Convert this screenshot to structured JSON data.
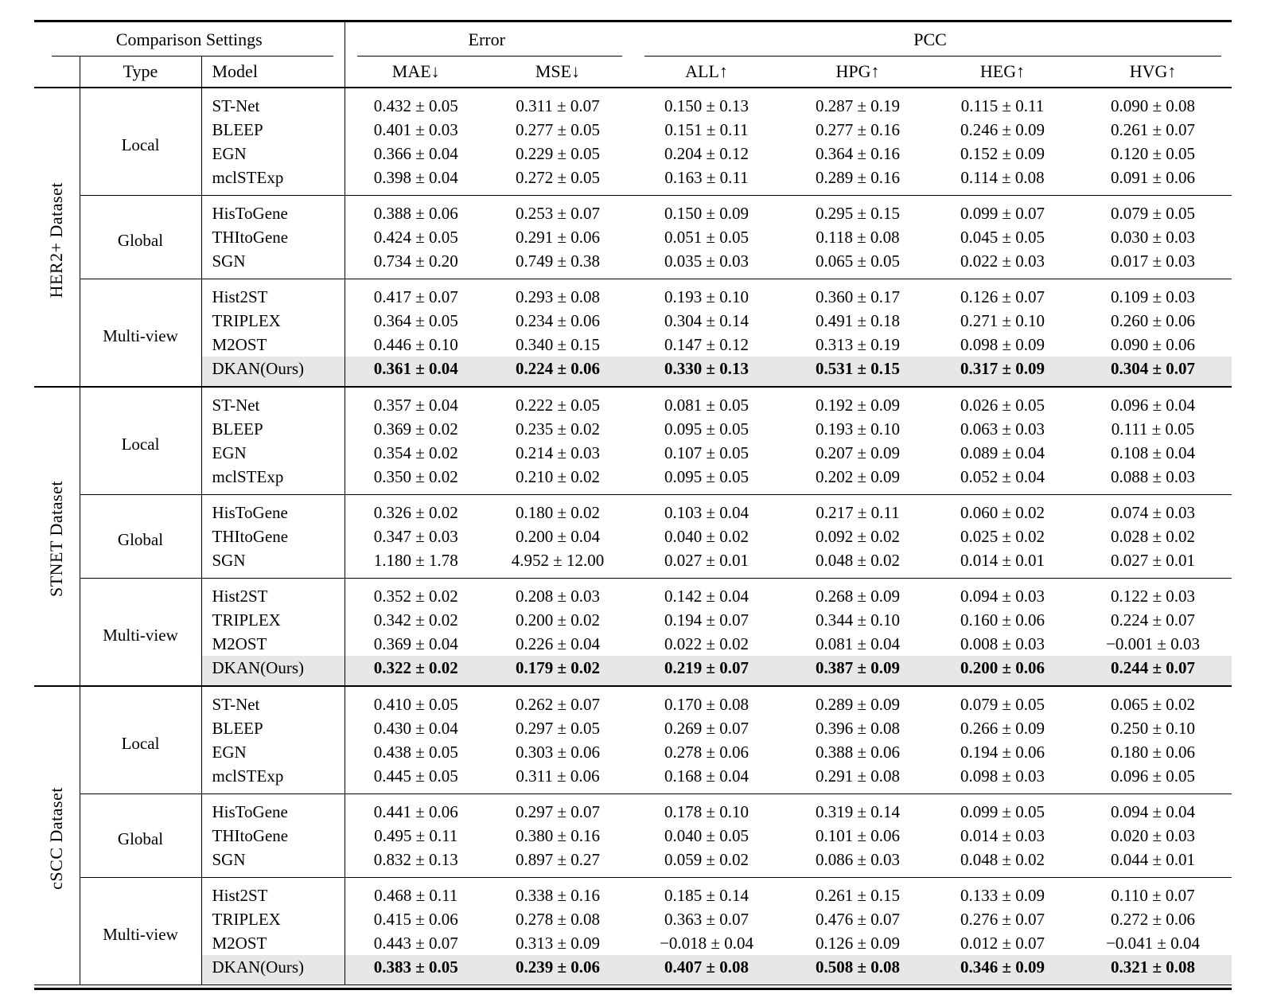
{
  "page": {
    "background": "#ffffff"
  },
  "table": {
    "header": {
      "comparison_settings": "Comparison Settings",
      "error": "Error",
      "pcc": "PCC",
      "type": "Type",
      "model": "Model",
      "metrics": [
        "MAE↓",
        "MSE↓",
        "ALL↑",
        "HPG↑",
        "HEG↑",
        "HVG↑"
      ]
    },
    "text_color": "#000000",
    "highlight_color": "#e7e7e7",
    "sections": [
      {
        "dataset": "HER2+ Dataset",
        "groups": [
          {
            "type": "Local",
            "rows": [
              {
                "model": "ST-Net",
                "highlight": false,
                "values": [
                  "0.432 ± 0.05",
                  "0.311 ± 0.07",
                  "0.150 ± 0.13",
                  "0.287 ± 0.19",
                  "0.115 ± 0.11",
                  "0.090 ± 0.08"
                ]
              },
              {
                "model": "BLEEP",
                "highlight": false,
                "values": [
                  "0.401 ± 0.03",
                  "0.277 ± 0.05",
                  "0.151 ± 0.11",
                  "0.277 ± 0.16",
                  "0.246 ± 0.09",
                  "0.261 ± 0.07"
                ]
              },
              {
                "model": "EGN",
                "highlight": false,
                "values": [
                  "0.366 ± 0.04",
                  "0.229 ± 0.05",
                  "0.204 ± 0.12",
                  "0.364 ± 0.16",
                  "0.152 ± 0.09",
                  "0.120 ± 0.05"
                ]
              },
              {
                "model": "mclSTExp",
                "highlight": false,
                "values": [
                  "0.398 ± 0.04",
                  "0.272 ± 0.05",
                  "0.163 ± 0.11",
                  "0.289 ± 0.16",
                  "0.114 ± 0.08",
                  "0.091 ± 0.06"
                ]
              }
            ]
          },
          {
            "type": "Global",
            "rows": [
              {
                "model": "HisToGene",
                "highlight": false,
                "values": [
                  "0.388 ± 0.06",
                  "0.253 ± 0.07",
                  "0.150 ± 0.09",
                  "0.295 ± 0.15",
                  "0.099 ± 0.07",
                  "0.079 ± 0.05"
                ]
              },
              {
                "model": "THItoGene",
                "highlight": false,
                "values": [
                  "0.424 ± 0.05",
                  "0.291 ± 0.06",
                  "0.051 ± 0.05",
                  "0.118 ± 0.08",
                  "0.045 ± 0.05",
                  "0.030 ± 0.03"
                ]
              },
              {
                "model": "SGN",
                "highlight": false,
                "values": [
                  "0.734 ± 0.20",
                  "0.749 ± 0.38",
                  "0.035 ± 0.03",
                  "0.065 ± 0.05",
                  "0.022 ± 0.03",
                  "0.017 ± 0.03"
                ]
              }
            ]
          },
          {
            "type": "Multi-view",
            "rows": [
              {
                "model": "Hist2ST",
                "highlight": false,
                "values": [
                  "0.417 ± 0.07",
                  "0.293 ± 0.08",
                  "0.193 ± 0.10",
                  "0.360 ± 0.17",
                  "0.126 ± 0.07",
                  "0.109 ± 0.03"
                ]
              },
              {
                "model": "TRIPLEX",
                "highlight": false,
                "values": [
                  "0.364 ± 0.05",
                  "0.234 ± 0.06",
                  "0.304 ± 0.14",
                  "0.491 ± 0.18",
                  "0.271 ± 0.10",
                  "0.260 ± 0.06"
                ]
              },
              {
                "model": "M2OST",
                "highlight": false,
                "values": [
                  "0.446 ± 0.10",
                  "0.340 ± 0.15",
                  "0.147 ± 0.12",
                  "0.313 ± 0.19",
                  "0.098 ± 0.09",
                  "0.090 ± 0.06"
                ]
              },
              {
                "model": "DKAN(Ours)",
                "highlight": true,
                "values": [
                  "0.361 ± 0.04",
                  "0.224 ± 0.06",
                  "0.330 ± 0.13",
                  "0.531 ± 0.15",
                  "0.317 ± 0.09",
                  "0.304 ± 0.07"
                ]
              }
            ]
          }
        ]
      },
      {
        "dataset": "STNET Dataset",
        "groups": [
          {
            "type": "Local",
            "rows": [
              {
                "model": "ST-Net",
                "highlight": false,
                "values": [
                  "0.357 ± 0.04",
                  "0.222 ± 0.05",
                  "0.081 ± 0.05",
                  "0.192 ± 0.09",
                  "0.026 ± 0.05",
                  "0.096 ± 0.04"
                ]
              },
              {
                "model": "BLEEP",
                "highlight": false,
                "values": [
                  "0.369 ± 0.02",
                  "0.235 ± 0.02",
                  "0.095 ± 0.05",
                  "0.193 ± 0.10",
                  "0.063 ± 0.03",
                  "0.111 ± 0.05"
                ]
              },
              {
                "model": "EGN",
                "highlight": false,
                "values": [
                  "0.354 ± 0.02",
                  "0.214 ± 0.03",
                  "0.107 ± 0.05",
                  "0.207 ± 0.09",
                  "0.089 ± 0.04",
                  "0.108 ± 0.04"
                ]
              },
              {
                "model": "mclSTExp",
                "highlight": false,
                "values": [
                  "0.350 ± 0.02",
                  "0.210 ± 0.02",
                  "0.095 ± 0.05",
                  "0.202 ± 0.09",
                  "0.052 ± 0.04",
                  "0.088 ± 0.03"
                ]
              }
            ]
          },
          {
            "type": "Global",
            "rows": [
              {
                "model": "HisToGene",
                "highlight": false,
                "values": [
                  "0.326 ± 0.02",
                  "0.180 ± 0.02",
                  "0.103 ± 0.04",
                  "0.217 ± 0.11",
                  "0.060 ± 0.02",
                  "0.074 ± 0.03"
                ]
              },
              {
                "model": "THItoGene",
                "highlight": false,
                "values": [
                  "0.347 ± 0.03",
                  "0.200 ± 0.04",
                  "0.040 ± 0.02",
                  "0.092 ± 0.02",
                  "0.025 ± 0.02",
                  "0.028 ± 0.02"
                ]
              },
              {
                "model": "SGN",
                "highlight": false,
                "values": [
                  "1.180 ± 1.78",
                  "4.952 ± 12.00",
                  "0.027 ± 0.01",
                  "0.048 ± 0.02",
                  "0.014 ± 0.01",
                  "0.027 ± 0.01"
                ]
              }
            ]
          },
          {
            "type": "Multi-view",
            "rows": [
              {
                "model": "Hist2ST",
                "highlight": false,
                "values": [
                  "0.352 ± 0.02",
                  "0.208 ± 0.03",
                  "0.142 ± 0.04",
                  "0.268 ± 0.09",
                  "0.094 ± 0.03",
                  "0.122 ± 0.03"
                ]
              },
              {
                "model": "TRIPLEX",
                "highlight": false,
                "values": [
                  "0.342 ± 0.02",
                  "0.200 ± 0.02",
                  "0.194 ± 0.07",
                  "0.344 ± 0.10",
                  "0.160 ± 0.06",
                  "0.224 ± 0.07"
                ]
              },
              {
                "model": "M2OST",
                "highlight": false,
                "values": [
                  "0.369 ± 0.04",
                  "0.226 ± 0.04",
                  "0.022 ± 0.02",
                  "0.081 ± 0.04",
                  "0.008 ± 0.03",
                  "−0.001 ± 0.03"
                ]
              },
              {
                "model": "DKAN(Ours)",
                "highlight": true,
                "values": [
                  "0.322 ± 0.02",
                  "0.179 ± 0.02",
                  "0.219 ± 0.07",
                  "0.387 ± 0.09",
                  "0.200 ± 0.06",
                  "0.244 ± 0.07"
                ]
              }
            ]
          }
        ]
      },
      {
        "dataset": "cSCC Dataset",
        "groups": [
          {
            "type": "Local",
            "rows": [
              {
                "model": "ST-Net",
                "highlight": false,
                "values": [
                  "0.410 ± 0.05",
                  "0.262 ± 0.07",
                  "0.170 ± 0.08",
                  "0.289 ± 0.09",
                  "0.079 ± 0.05",
                  "0.065 ± 0.02"
                ]
              },
              {
                "model": "BLEEP",
                "highlight": false,
                "values": [
                  "0.430 ± 0.04",
                  "0.297 ± 0.05",
                  "0.269 ± 0.07",
                  "0.396 ± 0.08",
                  "0.266 ± 0.09",
                  "0.250 ± 0.10"
                ]
              },
              {
                "model": "EGN",
                "highlight": false,
                "values": [
                  "0.438 ± 0.05",
                  "0.303 ± 0.06",
                  "0.278 ± 0.06",
                  "0.388 ± 0.06",
                  "0.194 ± 0.06",
                  "0.180 ± 0.06"
                ]
              },
              {
                "model": "mclSTExp",
                "highlight": false,
                "values": [
                  "0.445 ± 0.05",
                  "0.311 ± 0.06",
                  "0.168 ± 0.04",
                  "0.291 ± 0.08",
                  "0.098 ± 0.03",
                  "0.096 ± 0.05"
                ]
              }
            ]
          },
          {
            "type": "Global",
            "rows": [
              {
                "model": "HisToGene",
                "highlight": false,
                "values": [
                  "0.441 ± 0.06",
                  "0.297 ± 0.07",
                  "0.178 ± 0.10",
                  "0.319 ± 0.14",
                  "0.099 ± 0.05",
                  "0.094 ± 0.04"
                ]
              },
              {
                "model": "THItoGene",
                "highlight": false,
                "values": [
                  "0.495 ± 0.11",
                  "0.380 ± 0.16",
                  "0.040 ± 0.05",
                  "0.101 ± 0.06",
                  "0.014 ± 0.03",
                  "0.020 ± 0.03"
                ]
              },
              {
                "model": "SGN",
                "highlight": false,
                "values": [
                  "0.832 ± 0.13",
                  "0.897 ± 0.27",
                  "0.059 ± 0.02",
                  "0.086 ± 0.03",
                  "0.048 ± 0.02",
                  "0.044 ± 0.01"
                ]
              }
            ]
          },
          {
            "type": "Multi-view",
            "rows": [
              {
                "model": "Hist2ST",
                "highlight": false,
                "values": [
                  "0.468 ± 0.11",
                  "0.338 ± 0.16",
                  "0.185 ± 0.14",
                  "0.261 ± 0.15",
                  "0.133 ± 0.09",
                  "0.110 ± 0.07"
                ]
              },
              {
                "model": "TRIPLEX",
                "highlight": false,
                "values": [
                  "0.415 ± 0.06",
                  "0.278 ± 0.08",
                  "0.363 ± 0.07",
                  "0.476 ± 0.07",
                  "0.276 ± 0.07",
                  "0.272 ± 0.06"
                ]
              },
              {
                "model": "M2OST",
                "highlight": false,
                "values": [
                  "0.443 ± 0.07",
                  "0.313 ± 0.09",
                  "−0.018 ± 0.04",
                  "0.126 ± 0.09",
                  "0.012 ± 0.07",
                  "−0.041 ± 0.04"
                ]
              },
              {
                "model": "DKAN(Ours)",
                "highlight": true,
                "values": [
                  "0.383 ± 0.05",
                  "0.239 ± 0.06",
                  "0.407 ± 0.08",
                  "0.508 ± 0.08",
                  "0.346 ± 0.09",
                  "0.321 ± 0.08"
                ]
              }
            ]
          }
        ]
      }
    ]
  }
}
